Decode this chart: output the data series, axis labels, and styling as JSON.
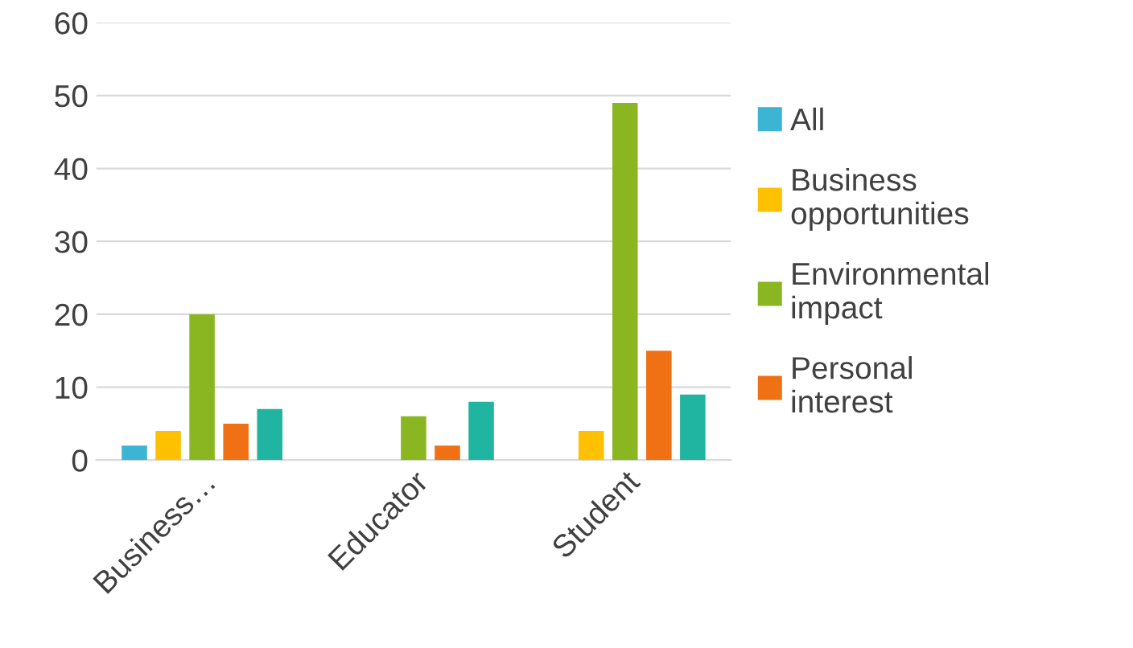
{
  "chart_data": {
    "type": "bar",
    "categories": [
      "Business…",
      "Educator",
      "Student"
    ],
    "series": [
      {
        "name": "All",
        "color": "#3cb4d4",
        "values": [
          2,
          null,
          null
        ]
      },
      {
        "name": "Business opportunities",
        "color": "#ffc000",
        "values": [
          4,
          null,
          4
        ]
      },
      {
        "name": "Environmental impact",
        "color": "#8ab622",
        "values": [
          20,
          6,
          49
        ]
      },
      {
        "name": "Personal interest",
        "color": "#f07014",
        "values": [
          5,
          2,
          15
        ]
      },
      {
        "color": "#1fb5a0",
        "values": [
          7,
          8,
          9
        ]
      }
    ],
    "ylim": [
      0,
      60
    ],
    "yticks": [
      0,
      10,
      20,
      30,
      40,
      50,
      60
    ],
    "grid": "y",
    "legend": "right"
  }
}
